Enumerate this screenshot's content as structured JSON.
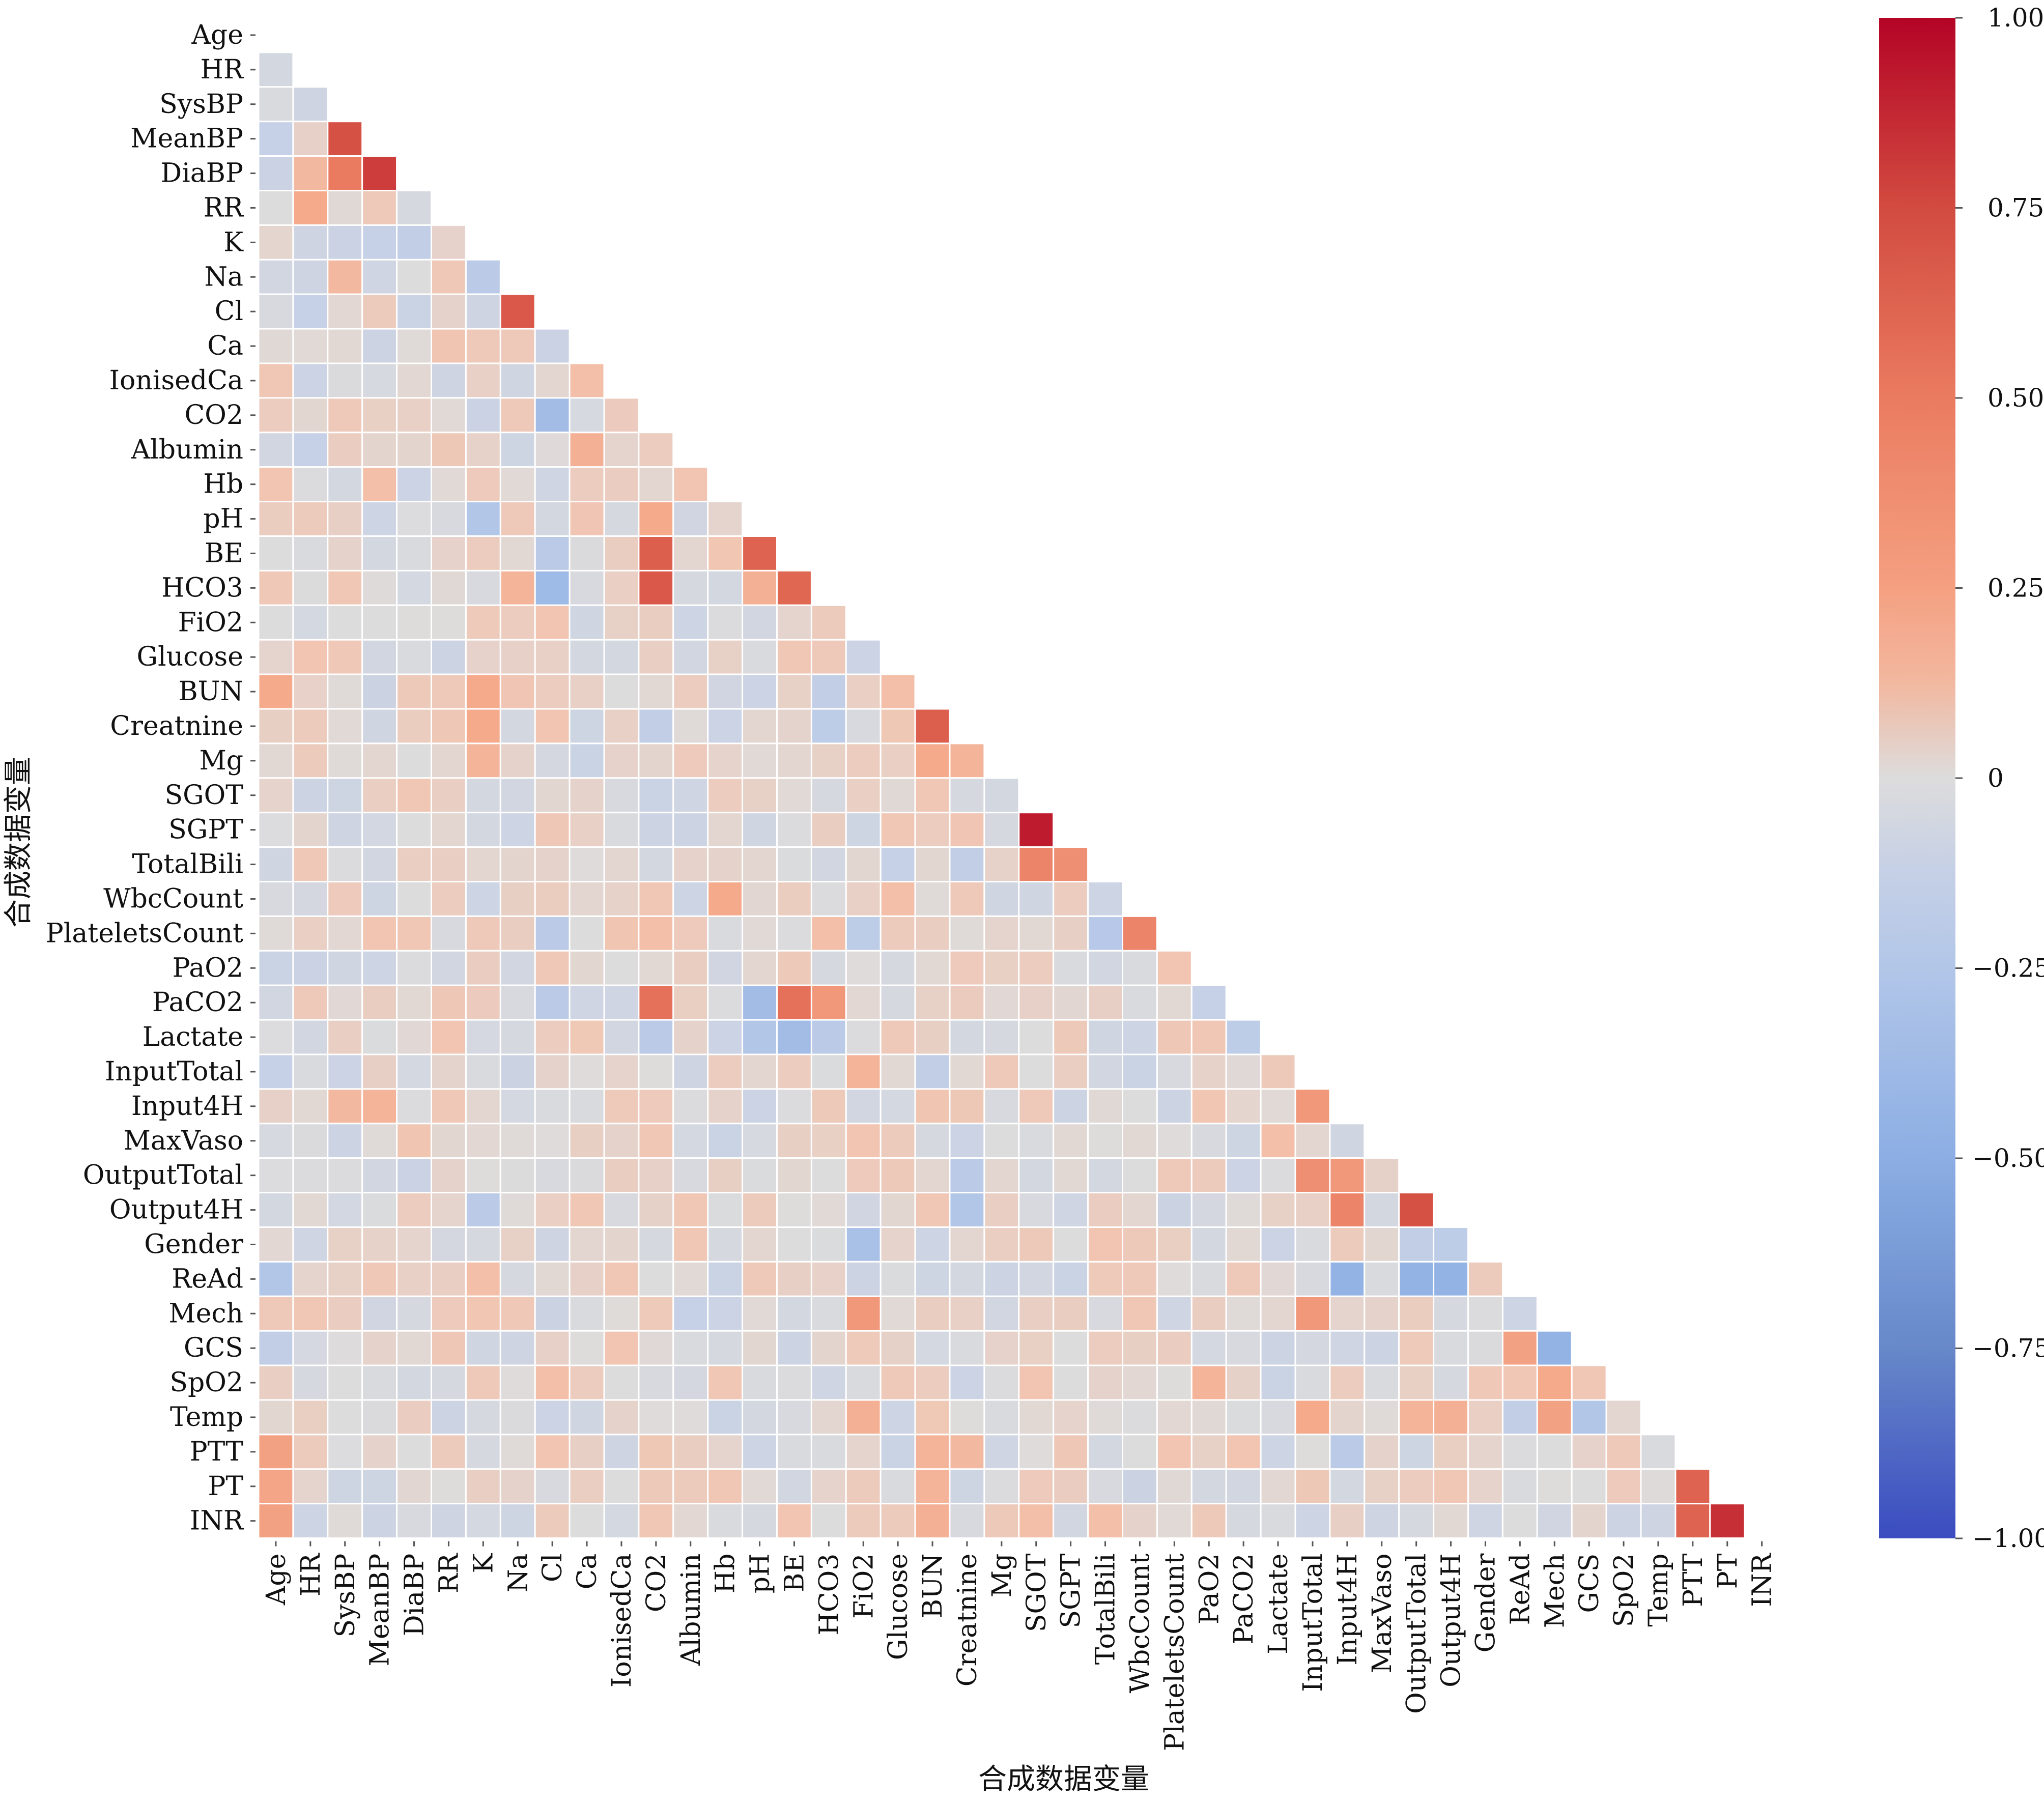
{
  "chart_data": {
    "type": "heatmap",
    "title": "",
    "xlabel": "合成数据变量",
    "ylabel": "合成数据变量",
    "mask": "lower-triangle (diagonal and upper triangle hidden)",
    "colormap": "coolwarm",
    "colorbar": {
      "vmin": -1.0,
      "vmax": 1.0,
      "ticks": [
        1.0,
        0.75,
        0.5,
        0.25,
        0,
        -0.25,
        -0.5,
        -0.75,
        -1.0
      ],
      "tick_labels": [
        "1.00",
        "0.75",
        "0.50",
        "0.25",
        "0",
        "−0.25",
        "−0.50",
        "−0.75",
        "−1.00"
      ],
      "placement": "right"
    },
    "variables": [
      "Age",
      "HR",
      "SysBP",
      "MeanBP",
      "DiaBP",
      "RR",
      "K",
      "Na",
      "Cl",
      "Ca",
      "IonisedCa",
      "CO2",
      "Albumin",
      "Hb",
      "pH",
      "BE",
      "HCO3",
      "FiO2",
      "Glucose",
      "BUN",
      "Creatnine",
      "Mg",
      "SGOT",
      "SGPT",
      "TotalBili",
      "WbcCount",
      "PlateletsCount",
      "PaO2",
      "PaCO2",
      "Lactate",
      "InputTotal",
      "Input4H",
      "MaxVaso",
      "OutputTotal",
      "Output4H",
      "Gender",
      "ReAd",
      "Mech",
      "GCS",
      "SpO2",
      "Temp",
      "PTT",
      "PT",
      "INR"
    ],
    "default_value": 0.03,
    "notable_values": [
      {
        "row": "HR",
        "col": "Age",
        "value": -0.05
      },
      {
        "row": "SysBP",
        "col": "Age",
        "value": -0.02
      },
      {
        "row": "SysBP",
        "col": "HR",
        "value": -0.08
      },
      {
        "row": "MeanBP",
        "col": "Age",
        "value": -0.12
      },
      {
        "row": "MeanBP",
        "col": "HR",
        "value": 0.06
      },
      {
        "row": "MeanBP",
        "col": "SysBP",
        "value": 0.72
      },
      {
        "row": "DiaBP",
        "col": "Age",
        "value": -0.1
      },
      {
        "row": "DiaBP",
        "col": "HR",
        "value": 0.18
      },
      {
        "row": "DiaBP",
        "col": "SysBP",
        "value": 0.5
      },
      {
        "row": "DiaBP",
        "col": "MeanBP",
        "value": 0.8
      },
      {
        "row": "RR",
        "col": "HR",
        "value": 0.25
      },
      {
        "row": "K",
        "col": "HR",
        "value": -0.08
      },
      {
        "row": "K",
        "col": "SysBP",
        "value": -0.1
      },
      {
        "row": "K",
        "col": "MeanBP",
        "value": -0.12
      },
      {
        "row": "K",
        "col": "DiaBP",
        "value": -0.15
      },
      {
        "row": "Na",
        "col": "HR",
        "value": -0.08
      },
      {
        "row": "Na",
        "col": "SysBP",
        "value": 0.18
      },
      {
        "row": "Na",
        "col": "K",
        "value": -0.2
      },
      {
        "row": "Cl",
        "col": "HR",
        "value": -0.12
      },
      {
        "row": "Cl",
        "col": "K",
        "value": -0.08
      },
      {
        "row": "Cl",
        "col": "Na",
        "value": 0.68
      },
      {
        "row": "Ca",
        "col": "Cl",
        "value": -0.1
      },
      {
        "row": "Ca",
        "col": "K",
        "value": 0.1
      },
      {
        "row": "Ca",
        "col": "Na",
        "value": 0.1
      },
      {
        "row": "IonisedCa",
        "col": "Ca",
        "value": 0.15
      },
      {
        "row": "IonisedCa",
        "col": "RR",
        "value": -0.08
      },
      {
        "row": "CO2",
        "col": "Cl",
        "value": -0.35
      },
      {
        "row": "CO2",
        "col": "K",
        "value": -0.1
      },
      {
        "row": "Albumin",
        "col": "Ca",
        "value": 0.22
      },
      {
        "row": "Albumin",
        "col": "HR",
        "value": -0.12
      },
      {
        "row": "Hb",
        "col": "Albumin",
        "value": 0.12
      },
      {
        "row": "Hb",
        "col": "MeanBP",
        "value": 0.15
      },
      {
        "row": "pH",
        "col": "K",
        "value": -0.25
      },
      {
        "row": "pH",
        "col": "CO2",
        "value": 0.25
      },
      {
        "row": "BE",
        "col": "CO2",
        "value": 0.65
      },
      {
        "row": "BE",
        "col": "pH",
        "value": 0.62
      },
      {
        "row": "BE",
        "col": "Cl",
        "value": -0.2
      },
      {
        "row": "HCO3",
        "col": "CO2",
        "value": 0.68
      },
      {
        "row": "HCO3",
        "col": "BE",
        "value": 0.6
      },
      {
        "row": "HCO3",
        "col": "Cl",
        "value": -0.38
      },
      {
        "row": "HCO3",
        "col": "pH",
        "value": 0.22
      },
      {
        "row": "HCO3",
        "col": "Na",
        "value": 0.2
      },
      {
        "row": "BUN",
        "col": "Age",
        "value": 0.25
      },
      {
        "row": "BUN",
        "col": "K",
        "value": 0.25
      },
      {
        "row": "BUN",
        "col": "HCO3",
        "value": -0.15
      },
      {
        "row": "BUN",
        "col": "Glucose",
        "value": 0.15
      },
      {
        "row": "Creatnine",
        "col": "K",
        "value": 0.25
      },
      {
        "row": "Creatnine",
        "col": "BUN",
        "value": 0.65
      },
      {
        "row": "Creatnine",
        "col": "HCO3",
        "value": -0.18
      },
      {
        "row": "Creatnine",
        "col": "CO2",
        "value": -0.15
      },
      {
        "row": "Mg",
        "col": "K",
        "value": 0.2
      },
      {
        "row": "Mg",
        "col": "BUN",
        "value": 0.25
      },
      {
        "row": "Mg",
        "col": "Creatnine",
        "value": 0.2
      },
      {
        "row": "SGPT",
        "col": "SGOT",
        "value": 0.92
      },
      {
        "row": "TotalBili",
        "col": "SGOT",
        "value": 0.45
      },
      {
        "row": "TotalBili",
        "col": "SGPT",
        "value": 0.4
      },
      {
        "row": "TotalBili",
        "col": "Glucose",
        "value": -0.12
      },
      {
        "row": "TotalBili",
        "col": "Creatnine",
        "value": -0.15
      },
      {
        "row": "WbcCount",
        "col": "Hb",
        "value": 0.25
      },
      {
        "row": "WbcCount",
        "col": "Glucose",
        "value": 0.15
      },
      {
        "row": "PlateletsCount",
        "col": "WbcCount",
        "value": 0.45
      },
      {
        "row": "PlateletsCount",
        "col": "Cl",
        "value": -0.2
      },
      {
        "row": "PlateletsCount",
        "col": "FiO2",
        "value": -0.18
      },
      {
        "row": "PlateletsCount",
        "col": "TotalBili",
        "value": -0.22
      },
      {
        "row": "PlateletsCount",
        "col": "CO2",
        "value": 0.15
      },
      {
        "row": "PlateletsCount",
        "col": "HCO3",
        "value": 0.15
      },
      {
        "row": "PaO2",
        "col": "PlateletsCount",
        "value": 0.12
      },
      {
        "row": "PaO2",
        "col": "HR",
        "value": -0.1
      },
      {
        "row": "PaCO2",
        "col": "CO2",
        "value": 0.55
      },
      {
        "row": "PaCO2",
        "col": "BE",
        "value": 0.55
      },
      {
        "row": "PaCO2",
        "col": "HCO3",
        "value": 0.35
      },
      {
        "row": "PaCO2",
        "col": "pH",
        "value": -0.35
      },
      {
        "row": "PaCO2",
        "col": "Cl",
        "value": -0.2
      },
      {
        "row": "PaCO2",
        "col": "PaO2",
        "value": -0.12
      },
      {
        "row": "Lactate",
        "col": "BE",
        "value": -0.35
      },
      {
        "row": "Lactate",
        "col": "pH",
        "value": -0.25
      },
      {
        "row": "Lactate",
        "col": "CO2",
        "value": -0.2
      },
      {
        "row": "Lactate",
        "col": "HCO3",
        "value": -0.2
      },
      {
        "row": "Lactate",
        "col": "PaCO2",
        "value": -0.18
      },
      {
        "row": "InputTotal",
        "col": "Age",
        "value": -0.12
      },
      {
        "row": "InputTotal",
        "col": "FiO2",
        "value": 0.2
      },
      {
        "row": "InputTotal",
        "col": "BUN",
        "value": -0.15
      },
      {
        "row": "Input4H",
        "col": "InputTotal",
        "value": 0.35
      },
      {
        "row": "Input4H",
        "col": "MeanBP",
        "value": 0.2
      },
      {
        "row": "Input4H",
        "col": "SysBP",
        "value": 0.18
      },
      {
        "row": "MaxVaso",
        "col": "Lactate",
        "value": 0.15
      },
      {
        "row": "OutputTotal",
        "col": "InputTotal",
        "value": 0.4
      },
      {
        "row": "OutputTotal",
        "col": "Input4H",
        "value": 0.35
      },
      {
        "row": "OutputTotal",
        "col": "Creatnine",
        "value": -0.2
      },
      {
        "row": "Output4H",
        "col": "OutputTotal",
        "value": 0.72
      },
      {
        "row": "Output4H",
        "col": "Input4H",
        "value": 0.45
      },
      {
        "row": "Output4H",
        "col": "Creatnine",
        "value": -0.25
      },
      {
        "row": "Output4H",
        "col": "K",
        "value": -0.2
      },
      {
        "row": "Gender",
        "col": "FiO2",
        "value": -0.3
      },
      {
        "row": "Gender",
        "col": "OutputTotal",
        "value": -0.15
      },
      {
        "row": "Gender",
        "col": "Output4H",
        "value": -0.18
      },
      {
        "row": "ReAd",
        "col": "Age",
        "value": -0.25
      },
      {
        "row": "ReAd",
        "col": "Input4H",
        "value": -0.45
      },
      {
        "row": "ReAd",
        "col": "OutputTotal",
        "value": -0.45
      },
      {
        "row": "ReAd",
        "col": "Output4H",
        "value": -0.45
      },
      {
        "row": "ReAd",
        "col": "K",
        "value": 0.15
      },
      {
        "row": "Mech",
        "col": "FiO2",
        "value": 0.35
      },
      {
        "row": "Mech",
        "col": "InputTotal",
        "value": 0.35
      },
      {
        "row": "Mech",
        "col": "Albumin",
        "value": -0.12
      },
      {
        "row": "GCS",
        "col": "Mech",
        "value": -0.45
      },
      {
        "row": "GCS",
        "col": "ReAd",
        "value": 0.3
      },
      {
        "row": "GCS",
        "col": "Age",
        "value": -0.15
      },
      {
        "row": "SpO2",
        "col": "Mech",
        "value": 0.25
      },
      {
        "row": "SpO2",
        "col": "PaO2",
        "value": 0.2
      },
      {
        "row": "SpO2",
        "col": "Cl",
        "value": 0.15
      },
      {
        "row": "Temp",
        "col": "Mech",
        "value": 0.3
      },
      {
        "row": "Temp",
        "col": "GCS",
        "value": -0.25
      },
      {
        "row": "Temp",
        "col": "InputTotal",
        "value": 0.25
      },
      {
        "row": "Temp",
        "col": "FiO2",
        "value": 0.22
      },
      {
        "row": "Temp",
        "col": "OutputTotal",
        "value": 0.2
      },
      {
        "row": "Temp",
        "col": "Output4H",
        "value": 0.22
      },
      {
        "row": "Temp",
        "col": "ReAd",
        "value": -0.15
      },
      {
        "row": "PTT",
        "col": "Age",
        "value": 0.3
      },
      {
        "row": "PTT",
        "col": "BUN",
        "value": 0.2
      },
      {
        "row": "PTT",
        "col": "Creatnine",
        "value": 0.18
      },
      {
        "row": "PTT",
        "col": "Input4H",
        "value": -0.2
      },
      {
        "row": "PT",
        "col": "PTT",
        "value": 0.62
      },
      {
        "row": "PT",
        "col": "Age",
        "value": 0.28
      },
      {
        "row": "PT",
        "col": "BUN",
        "value": 0.2
      },
      {
        "row": "INR",
        "col": "PTT",
        "value": 0.62
      },
      {
        "row": "INR",
        "col": "PT",
        "value": 0.85
      },
      {
        "row": "INR",
        "col": "Age",
        "value": 0.3
      },
      {
        "row": "INR",
        "col": "BUN",
        "value": 0.22
      },
      {
        "row": "INR",
        "col": "SGOT",
        "value": 0.15
      },
      {
        "row": "INR",
        "col": "TotalBili",
        "value": 0.15
      }
    ]
  }
}
